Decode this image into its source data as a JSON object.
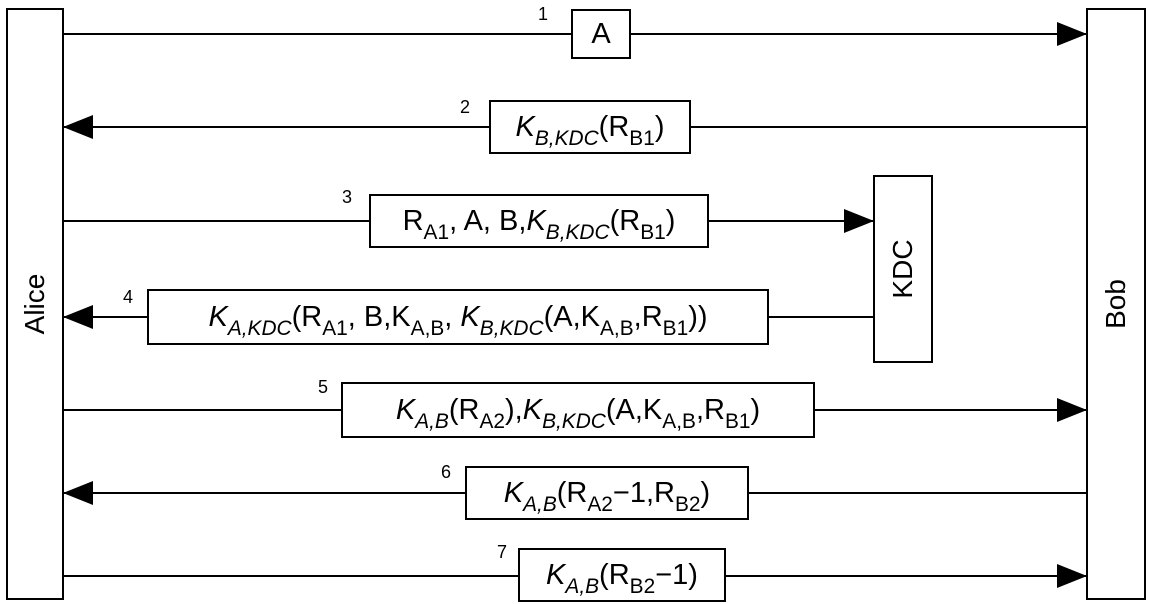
{
  "parties": {
    "alice": "Alice",
    "bob": "Bob",
    "kdc": "KDC"
  },
  "messages": [
    {
      "number": "1",
      "direction": "Alice → Bob",
      "text": "A",
      "parts": [
        {
          "t": "A"
        }
      ]
    },
    {
      "number": "2",
      "direction": "Bob → Alice",
      "text": "K_B,KDC(R_B1)",
      "parts": [
        {
          "t": "K",
          "i": true
        },
        {
          "t": "B,KDC",
          "i": true,
          "sub": true
        },
        {
          "t": "(R"
        },
        {
          "t": "B1",
          "sub": true
        },
        {
          "t": ")"
        }
      ]
    },
    {
      "number": "3",
      "direction": "Alice → KDC",
      "text": "R_A1, A, B, K_B,KDC(R_B1)",
      "parts": [
        {
          "t": "R"
        },
        {
          "t": "A1",
          "sub": true
        },
        {
          "t": ", A, B,"
        },
        {
          "t": "K",
          "i": true
        },
        {
          "t": "B,KDC",
          "i": true,
          "sub": true
        },
        {
          "t": "(R"
        },
        {
          "t": "B1",
          "sub": true
        },
        {
          "t": ")"
        }
      ]
    },
    {
      "number": "4",
      "direction": "KDC → Alice",
      "text": "K_A,KDC(R_A1, B, K_A,B, K_B,KDC(A, K_A,B, R_B1))",
      "parts": [
        {
          "t": "K",
          "i": true
        },
        {
          "t": "A,KDC",
          "i": true,
          "sub": true
        },
        {
          "t": "(R"
        },
        {
          "t": "A1",
          "sub": true
        },
        {
          "t": ", B,K"
        },
        {
          "t": "A,B",
          "sub": true
        },
        {
          "t": ", "
        },
        {
          "t": "K",
          "i": true
        },
        {
          "t": "B,KDC",
          "i": true,
          "sub": true
        },
        {
          "t": "(A,K"
        },
        {
          "t": "A,B",
          "sub": true
        },
        {
          "t": ",R"
        },
        {
          "t": "B1",
          "sub": true
        },
        {
          "t": "))"
        }
      ]
    },
    {
      "number": "5",
      "direction": "Alice → Bob",
      "text": "K_A,B(R_A2), K_B,KDC(A, K_A,B, R_B1)",
      "parts": [
        {
          "t": "K",
          "i": true
        },
        {
          "t": "A,B",
          "i": true,
          "sub": true
        },
        {
          "t": "(R"
        },
        {
          "t": "A2",
          "sub": true
        },
        {
          "t": "),"
        },
        {
          "t": "K",
          "i": true
        },
        {
          "t": "B,KDC",
          "i": true,
          "sub": true
        },
        {
          "t": "(A,K"
        },
        {
          "t": "A,B",
          "sub": true
        },
        {
          "t": ",R"
        },
        {
          "t": "B1",
          "sub": true
        },
        {
          "t": ")"
        }
      ]
    },
    {
      "number": "6",
      "direction": "Bob → Alice",
      "text": "K_A,B(R_A2 −1, R_B2)",
      "parts": [
        {
          "t": "K",
          "i": true
        },
        {
          "t": "A,B",
          "i": true,
          "sub": true
        },
        {
          "t": "(R"
        },
        {
          "t": "A2",
          "sub": true
        },
        {
          "t": "−1,R"
        },
        {
          "t": "B2",
          "sub": true
        },
        {
          "t": ")"
        }
      ]
    },
    {
      "number": "7",
      "direction": "Alice → Bob",
      "text": "K_A,B(R_B2 −1)",
      "parts": [
        {
          "t": "K",
          "i": true
        },
        {
          "t": "A,B",
          "i": true,
          "sub": true
        },
        {
          "t": "(R"
        },
        {
          "t": "B2",
          "sub": true
        },
        {
          "t": "−1)"
        }
      ]
    }
  ]
}
